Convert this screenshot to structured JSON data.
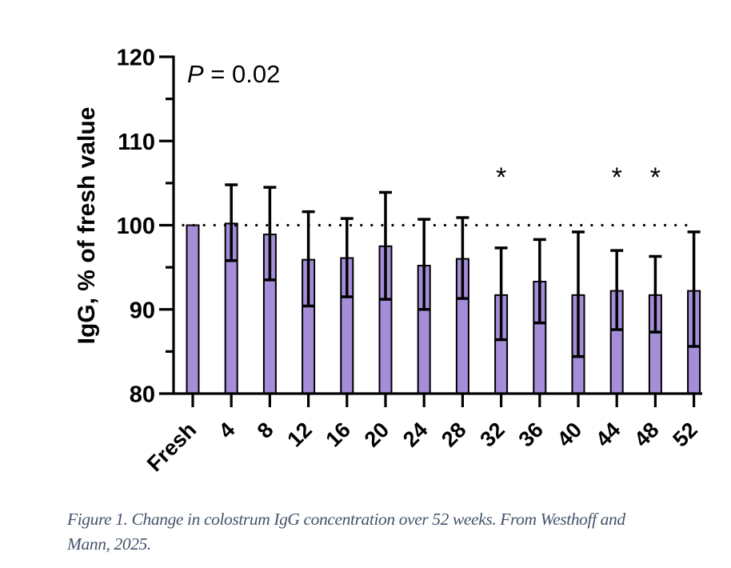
{
  "chart_data": {
    "type": "bar",
    "title": "",
    "annotation": {
      "prefix": "P",
      "text": " = 0.02"
    },
    "xlabel": "",
    "ylabel": "IgG, % of fresh value",
    "ylim": [
      80,
      120
    ],
    "yticks_major": [
      80,
      90,
      100,
      110,
      120
    ],
    "yticks_minor": [
      85,
      95,
      105,
      115
    ],
    "reference_line": 100,
    "grid": false,
    "legend": "none",
    "categories": [
      "Fresh",
      "4",
      "8",
      "12",
      "16",
      "20",
      "24",
      "28",
      "32",
      "36",
      "40",
      "44",
      "48",
      "52"
    ],
    "values": [
      100.0,
      100.2,
      98.9,
      95.9,
      96.1,
      97.5,
      95.2,
      96.0,
      91.7,
      93.3,
      91.7,
      92.2,
      91.7,
      92.2
    ],
    "error_upper": [
      null,
      104.8,
      104.5,
      101.6,
      100.8,
      103.9,
      100.7,
      100.9,
      97.3,
      98.3,
      99.2,
      97.0,
      96.3,
      99.2
    ],
    "error_lower": [
      null,
      95.8,
      93.5,
      90.4,
      91.5,
      91.2,
      90.0,
      91.3,
      86.4,
      88.4,
      84.4,
      87.6,
      87.3,
      85.6
    ],
    "significance": [
      "",
      "",
      "",
      "",
      "",
      "",
      "",
      "",
      "*",
      "",
      "",
      "*",
      "*",
      ""
    ],
    "colors": {
      "bar_fill": "#a48ed8",
      "outline": "#000000"
    }
  },
  "caption": {
    "line1": "Figure 1. Change in colostrum IgG concentration over 52 weeks.  From Westhoff and",
    "line2": "Mann, 2025."
  }
}
